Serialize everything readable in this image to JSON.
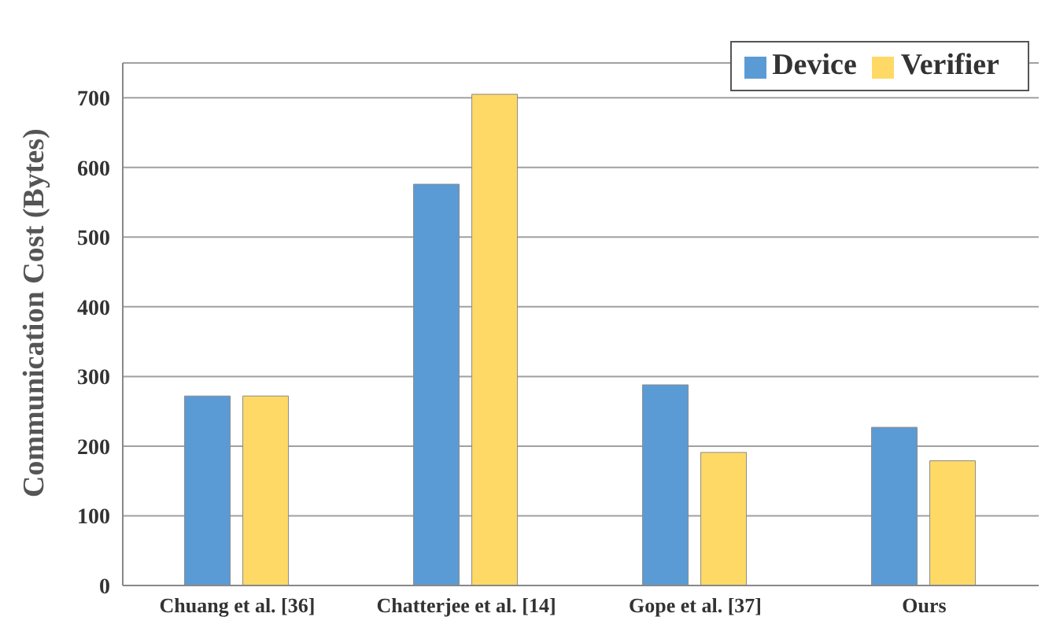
{
  "chart_data": {
    "type": "bar",
    "ylabel": "Communication Cost (Bytes)",
    "categories": [
      "Chuang et al. [36]",
      "Chatterjee et al. [14]",
      "Gope et al. [37]",
      "Ours"
    ],
    "series": [
      {
        "name": "Device",
        "color": "#5b9bd5",
        "values": [
          272,
          576,
          288,
          227
        ]
      },
      {
        "name": "Verifier",
        "color": "#ffd966",
        "values": [
          272,
          705,
          191,
          179
        ]
      }
    ],
    "ylim": [
      0,
      750
    ],
    "yticks": [
      0,
      100,
      200,
      300,
      400,
      500,
      600,
      700
    ],
    "grid": "y",
    "legend": "top right"
  }
}
